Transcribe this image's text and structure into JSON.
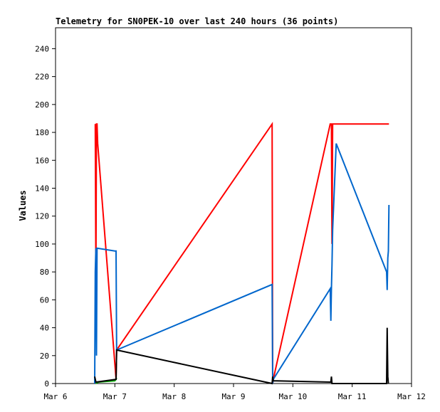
{
  "chart_data": {
    "type": "line",
    "title": "Telemetry for SN0PEK-10 over last 240 hours (36 points)",
    "xlabel": "",
    "ylabel": "Values",
    "xlim": [
      6.0,
      12.0
    ],
    "ylim": [
      0,
      255
    ],
    "x_ticks": [
      {
        "value": 6,
        "label": "Mar 6"
      },
      {
        "value": 7,
        "label": "Mar 7"
      },
      {
        "value": 8,
        "label": "Mar 8"
      },
      {
        "value": 9,
        "label": "Mar 9"
      },
      {
        "value": 10,
        "label": "Mar 10"
      },
      {
        "value": 11,
        "label": "Mar 11"
      },
      {
        "value": 12,
        "label": "Mar 12"
      }
    ],
    "y_ticks": [
      0,
      20,
      40,
      60,
      80,
      100,
      120,
      140,
      160,
      180,
      200,
      220,
      240
    ],
    "grid": false,
    "legend": "none",
    "x_units": "days in March (fractional)",
    "series": [
      {
        "color": "#ff0000",
        "points": [
          [
            6.67,
            186
          ],
          [
            6.68,
            75
          ],
          [
            6.69,
            186
          ],
          [
            6.7,
            186
          ],
          [
            6.71,
            172
          ],
          [
            7.02,
            3
          ],
          [
            7.03,
            24
          ],
          [
            9.65,
            186
          ],
          [
            9.66,
            0
          ],
          [
            9.67,
            3
          ],
          [
            10.63,
            186
          ],
          [
            10.65,
            186
          ],
          [
            10.66,
            100
          ],
          [
            10.67,
            186
          ],
          [
            11.58,
            186
          ],
          [
            11.6,
            186
          ],
          [
            11.62,
            186
          ]
        ]
      },
      {
        "color": "#0066cc",
        "points": [
          [
            6.66,
            0
          ],
          [
            6.67,
            80
          ],
          [
            6.68,
            97
          ],
          [
            6.69,
            20
          ],
          [
            6.7,
            97
          ],
          [
            7.0,
            95
          ],
          [
            7.02,
            95
          ],
          [
            7.03,
            24
          ],
          [
            9.65,
            71
          ],
          [
            9.66,
            0
          ],
          [
            9.67,
            3
          ],
          [
            10.63,
            68
          ],
          [
            10.64,
            45
          ],
          [
            10.65,
            68
          ],
          [
            10.66,
            85
          ],
          [
            10.67,
            110
          ],
          [
            10.73,
            172
          ],
          [
            11.58,
            80
          ],
          [
            11.59,
            67
          ],
          [
            11.6,
            90
          ],
          [
            11.61,
            95
          ],
          [
            11.62,
            128
          ]
        ]
      },
      {
        "color": "#00aa00",
        "points": [
          [
            6.68,
            0
          ],
          [
            6.72,
            1
          ],
          [
            7.0,
            2
          ],
          [
            7.02,
            3
          ],
          [
            7.03,
            4
          ]
        ]
      },
      {
        "color": "#000000",
        "points": [
          [
            6.66,
            5
          ],
          [
            6.68,
            1
          ],
          [
            7.02,
            3
          ],
          [
            7.03,
            24
          ],
          [
            9.65,
            0
          ],
          [
            9.66,
            5
          ],
          [
            9.67,
            2
          ],
          [
            10.64,
            1
          ],
          [
            10.65,
            5
          ],
          [
            10.66,
            0
          ],
          [
            11.58,
            0
          ],
          [
            11.59,
            40
          ],
          [
            11.6,
            5
          ],
          [
            11.61,
            0
          ]
        ]
      }
    ]
  }
}
